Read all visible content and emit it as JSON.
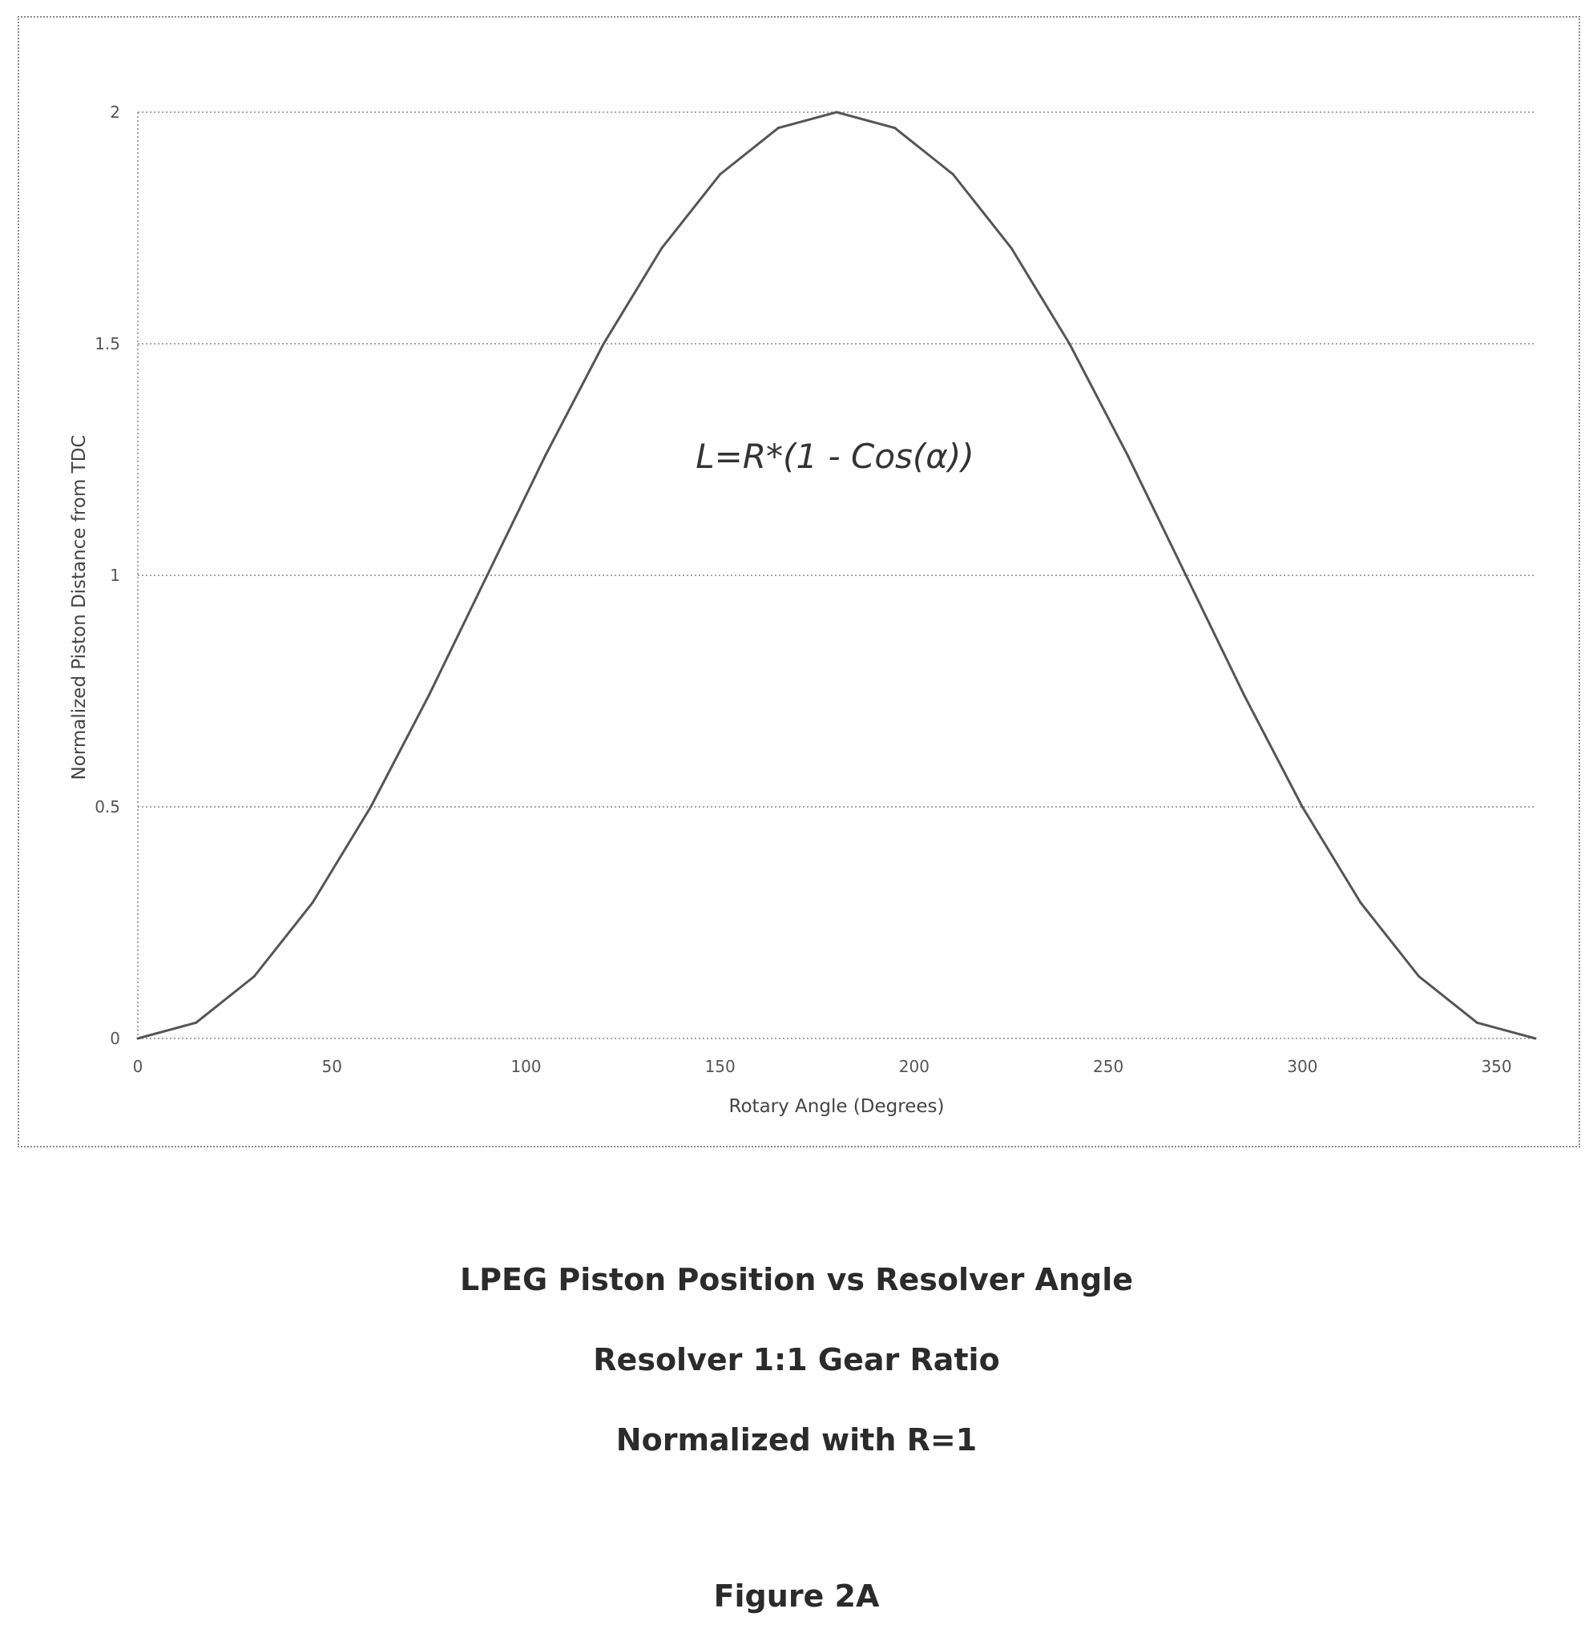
{
  "chart_data": {
    "type": "line",
    "xlabel": "Rotary Angle (Degrees)",
    "ylabel": "Normalized Piston Distance from TDC",
    "xlim": [
      0,
      360
    ],
    "ylim": [
      0,
      2
    ],
    "x_ticks": [
      0,
      50,
      100,
      150,
      200,
      250,
      300,
      350
    ],
    "y_ticks": [
      0,
      0.5,
      1,
      1.5,
      2
    ],
    "y_tick_labels": [
      "0",
      "0.5",
      "1",
      "1.5",
      "2"
    ],
    "grid": "horizontal dotted",
    "annotation": "L=R*(1 - Cos(α))",
    "series": [
      {
        "color": "#555555",
        "x": [
          0,
          15,
          30,
          45,
          60,
          75,
          90,
          105,
          120,
          135,
          150,
          165,
          180,
          195,
          210,
          225,
          240,
          255,
          270,
          285,
          300,
          315,
          330,
          345,
          360
        ],
        "y": [
          0,
          0.034,
          0.134,
          0.293,
          0.5,
          0.741,
          1.0,
          1.259,
          1.5,
          1.707,
          1.866,
          1.966,
          2.0,
          1.966,
          1.866,
          1.707,
          1.5,
          1.259,
          1.0,
          0.741,
          0.5,
          0.293,
          0.134,
          0.034,
          0
        ]
      }
    ]
  },
  "captions": {
    "title": "LPEG Piston Position vs Resolver Angle",
    "line2": "Resolver 1:1 Gear Ratio",
    "line3": "Normalized with R=1",
    "figure": "Figure 2A"
  }
}
